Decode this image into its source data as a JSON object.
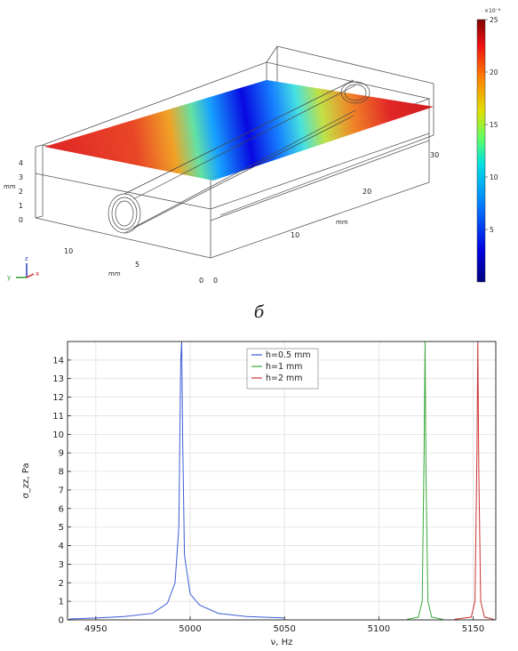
{
  "surface_plot": {
    "colorbar": {
      "exponent_label": "×10⁻⁶",
      "ticks": [
        {
          "value": 25,
          "label": "25"
        },
        {
          "value": 20,
          "label": "20"
        },
        {
          "value": 15,
          "label": "15"
        },
        {
          "value": 10,
          "label": "10"
        },
        {
          "value": 5,
          "label": "5"
        }
      ],
      "min": 0,
      "max": 25
    },
    "axes": {
      "z_ticks": [
        "4",
        "3",
        "2",
        "1",
        "0"
      ],
      "z_label": "mm",
      "x_ticks": [
        "10",
        "5",
        "0"
      ],
      "x_label": "mm",
      "y_ticks": [
        "0",
        "10",
        "20",
        "30"
      ],
      "y_label": "mm"
    },
    "triad": {
      "z": "z",
      "y": "y",
      "x": "x"
    }
  },
  "panel_label": "б",
  "chart_data": {
    "type": "line",
    "xlabel": "ν, Hz",
    "ylabel": "σ_zz, Pa",
    "xlim": [
      4935,
      5162
    ],
    "ylim": [
      0,
      15
    ],
    "x_ticks": [
      4950,
      5000,
      5050,
      5100,
      5150
    ],
    "y_ticks": [
      0,
      1,
      2,
      3,
      4,
      5,
      6,
      7,
      8,
      9,
      10,
      11,
      12,
      13,
      14
    ],
    "grid": true,
    "legend": "top-center",
    "series": [
      {
        "name": "h=0.5 mm",
        "color": "#3b5bd6",
        "x": [
          4936,
          4950,
          4965,
          4980,
          4988,
          4992,
          4994,
          4995,
          4995.5,
          4996,
          4997,
          5000,
          5005,
          5015,
          5030,
          5050
        ],
        "y": [
          0.05,
          0.1,
          0.18,
          0.35,
          0.9,
          2.0,
          5.0,
          14.0,
          15.0,
          10.0,
          3.5,
          1.4,
          0.8,
          0.35,
          0.18,
          0.1
        ]
      },
      {
        "name": "h=1 mm",
        "color": "#3aaa3a",
        "x": [
          5115,
          5121,
          5123,
          5124,
          5124.5,
          5125,
          5126,
          5128,
          5134
        ],
        "y": [
          0.03,
          0.15,
          1.0,
          9.0,
          15.0,
          8.0,
          1.0,
          0.15,
          0.03
        ]
      },
      {
        "name": "h=2 mm",
        "color": "#cc3333",
        "x": [
          5140,
          5149,
          5151,
          5152,
          5152.5,
          5153,
          5154,
          5156,
          5161
        ],
        "y": [
          0.03,
          0.15,
          1.0,
          9.0,
          15.0,
          8.0,
          1.0,
          0.15,
          0.03
        ]
      }
    ]
  }
}
